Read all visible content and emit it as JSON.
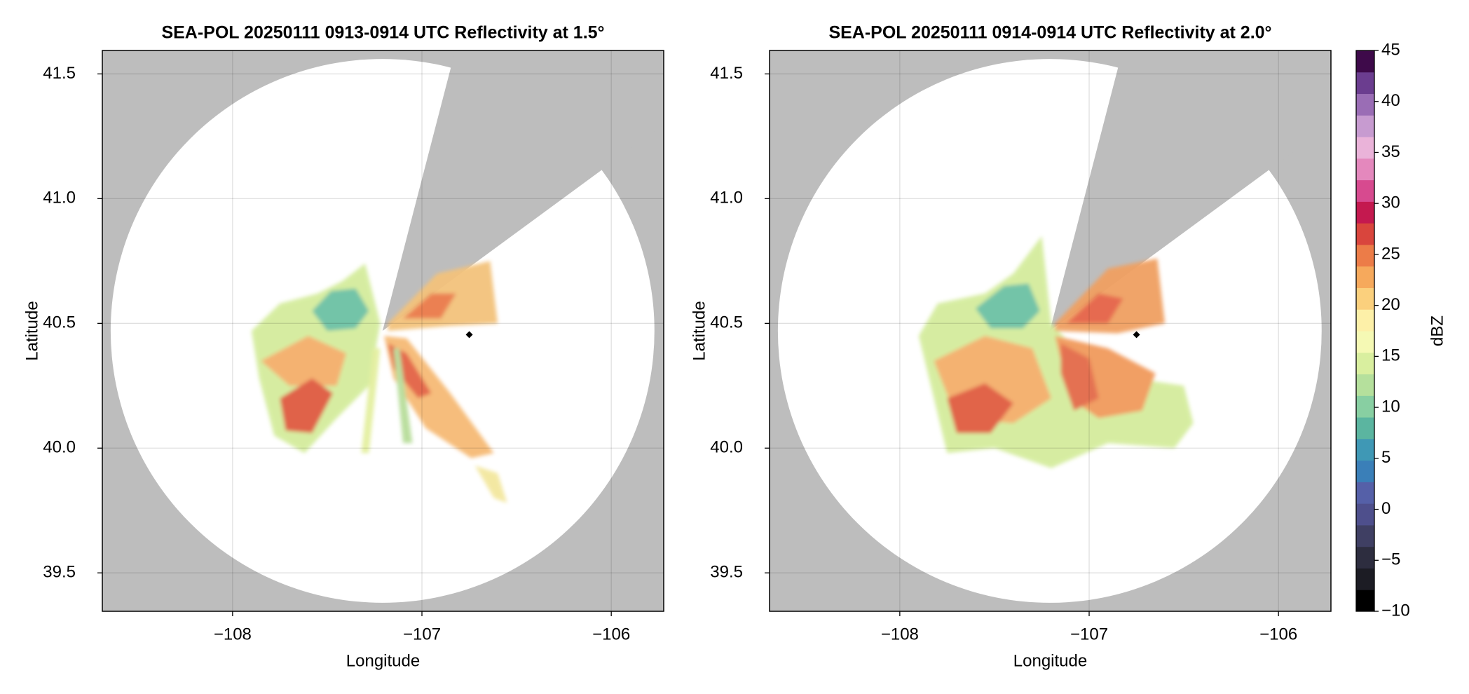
{
  "chart_data": [
    {
      "type": "radar-map",
      "title": "SEA-POL 20250111 0913-0914 UTC Reflectivity at 1.5°",
      "xlabel": "Longitude",
      "ylabel": "Latitude",
      "xlim": [
        -108.688,
        -105.723
      ],
      "ylim": [
        39.346,
        41.594
      ],
      "xticks": [
        {
          "value": -108,
          "label": "−108"
        },
        {
          "value": -107,
          "label": "−107"
        },
        {
          "value": -106,
          "label": "−106"
        }
      ],
      "yticks": [
        {
          "value": 39.5,
          "label": "39.5"
        },
        {
          "value": 40,
          "label": "40.0"
        },
        {
          "value": 40.5,
          "label": "40.5"
        },
        {
          "value": 41,
          "label": "41.0"
        },
        {
          "value": 41.5,
          "label": "41.5"
        }
      ],
      "grid": true
    },
    {
      "type": "radar-map",
      "title": "SEA-POL 20250111 0914-0914 UTC Reflectivity at 2.0°",
      "xlabel": "Longitude",
      "ylabel": "Latitude",
      "xlim": [
        -108.688,
        -105.723
      ],
      "ylim": [
        39.346,
        41.594
      ],
      "xticks": [
        {
          "value": -108,
          "label": "−108"
        },
        {
          "value": -107,
          "label": "−107"
        },
        {
          "value": -106,
          "label": "−106"
        }
      ],
      "yticks": [
        {
          "value": 39.5,
          "label": "39.5"
        },
        {
          "value": 40,
          "label": "40.0"
        },
        {
          "value": 40.5,
          "label": "40.5"
        },
        {
          "value": 41,
          "label": "41.0"
        },
        {
          "value": 41.5,
          "label": "41.5"
        }
      ],
      "grid": true
    }
  ],
  "colorbar": {
    "label": "dBZ",
    "lim": [
      -10,
      45
    ],
    "ticks": [
      {
        "value": -10,
        "label": "−10"
      },
      {
        "value": -5,
        "label": "−5"
      },
      0,
      5,
      10,
      15,
      20,
      25,
      30,
      35,
      40,
      45
    ],
    "colors": [
      "#000000",
      "#1c1c24",
      "#2d2d3f",
      "#3f3f63",
      "#4e4f8c",
      "#5560a8",
      "#3a7fb8",
      "#3f98b5",
      "#5bb5a0",
      "#88cfa2",
      "#b5e09c",
      "#d9ef9f",
      "#f5f9b4",
      "#fdf0a8",
      "#fbd07d",
      "#f6a95c",
      "#ec7c48",
      "#d9453d",
      "#c4194f",
      "#d74a8f",
      "#e488bd",
      "#eab3d9",
      "#c79bd0",
      "#9a6db5",
      "#6b3d8f",
      "#3e0a4a"
    ]
  }
}
